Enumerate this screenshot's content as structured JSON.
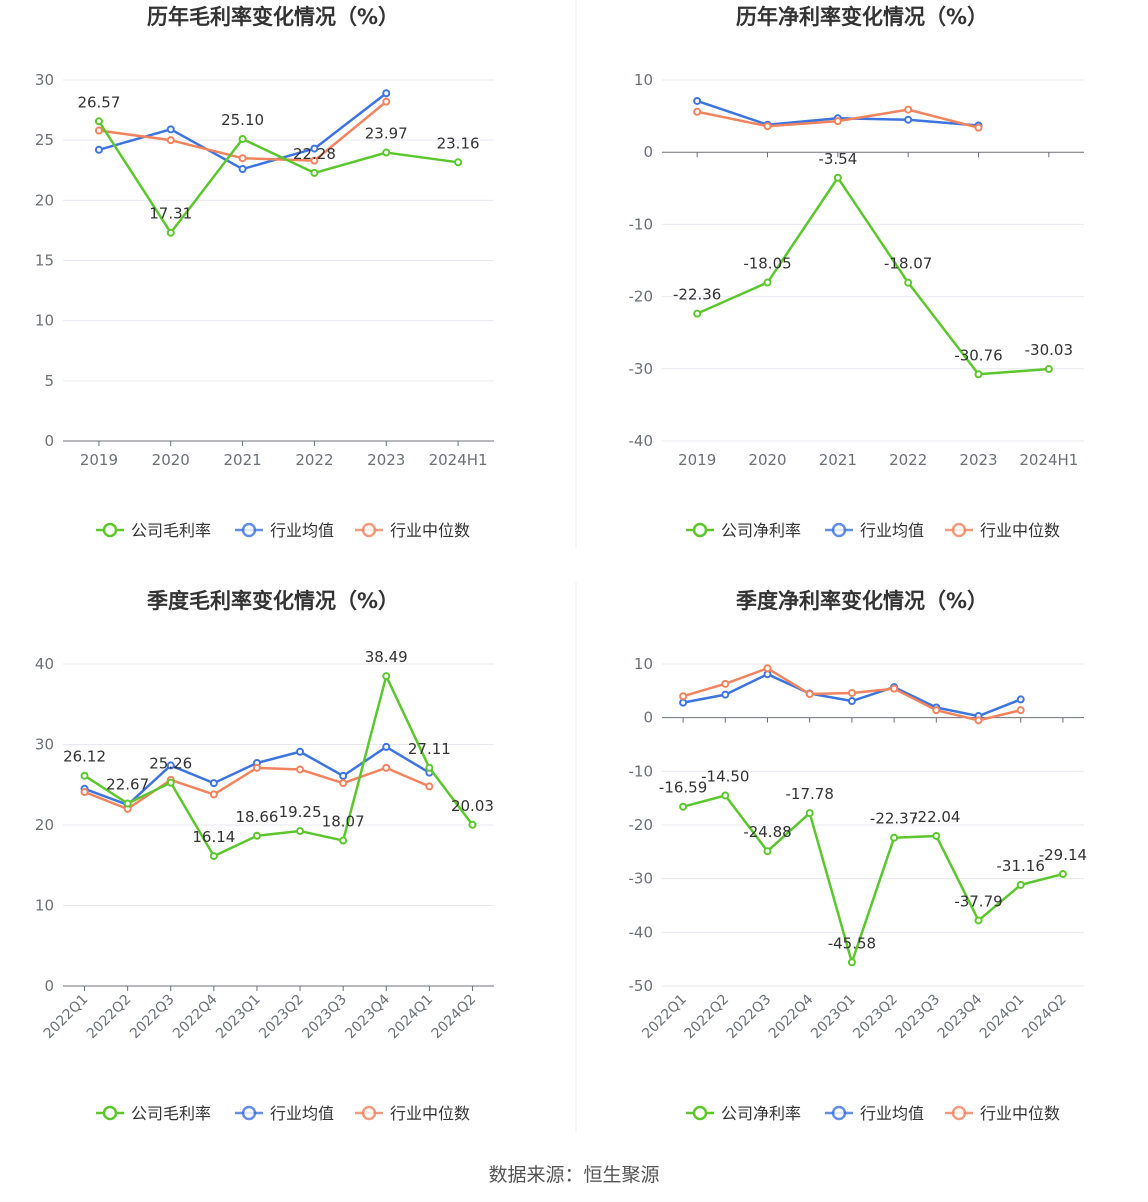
{
  "colors": {
    "company": "#5cc72d",
    "industry_avg": "#3d74e0",
    "industry_median": "#f1835e",
    "grid": "#e6e9f0",
    "axis": "#6e7079",
    "tick_text": "#6e7079",
    "title": "#333333",
    "label": "#333333"
  },
  "source": "数据来源：恒生聚源",
  "chart_data": [
    {
      "type": "line",
      "title": "历年毛利率变化情况（%）",
      "categories": [
        "2019",
        "2020",
        "2021",
        "2022",
        "2023",
        "2024H1"
      ],
      "ylim": [
        0,
        30
      ],
      "yticks": [
        0,
        5,
        10,
        15,
        20,
        25,
        30
      ],
      "grid": true,
      "legend_position": "bottom",
      "series": [
        {
          "name": "公司毛利率",
          "key": "company",
          "values": [
            26.57,
            17.31,
            25.1,
            22.28,
            23.97,
            23.16
          ],
          "labels": [
            "26.57",
            "17.31",
            "25.10",
            "22.28",
            "23.97",
            "23.16"
          ]
        },
        {
          "name": "行业均值",
          "key": "industry_avg",
          "values": [
            24.2,
            25.9,
            22.6,
            24.3,
            28.9,
            null
          ]
        },
        {
          "name": "行业中位数",
          "key": "industry_median",
          "values": [
            25.8,
            25.0,
            23.5,
            23.3,
            28.2,
            null
          ]
        }
      ]
    },
    {
      "type": "line",
      "title": "历年净利率变化情况（%）",
      "categories": [
        "2019",
        "2020",
        "2021",
        "2022",
        "2023",
        "2024H1"
      ],
      "ylim": [
        -40,
        10
      ],
      "yticks": [
        -40,
        -30,
        -20,
        -10,
        0,
        10
      ],
      "grid": true,
      "legend_position": "bottom",
      "series": [
        {
          "name": "公司净利率",
          "key": "company",
          "values": [
            -22.36,
            -18.05,
            -3.54,
            -18.07,
            -30.76,
            -30.03
          ],
          "labels": [
            "-22.36",
            "-18.05",
            "-3.54",
            "-18.07",
            "-30.76",
            "-30.03"
          ]
        },
        {
          "name": "行业均值",
          "key": "industry_avg",
          "values": [
            7.1,
            3.8,
            4.7,
            4.5,
            3.7,
            null
          ]
        },
        {
          "name": "行业中位数",
          "key": "industry_median",
          "values": [
            5.6,
            3.6,
            4.3,
            5.9,
            3.4,
            null
          ]
        }
      ]
    },
    {
      "type": "line",
      "title": "季度毛利率变化情况（%）",
      "categories": [
        "2022Q1",
        "2022Q2",
        "2022Q3",
        "2022Q4",
        "2023Q1",
        "2023Q2",
        "2023Q3",
        "2023Q4",
        "2024Q1",
        "2024Q2"
      ],
      "ylim": [
        0,
        40
      ],
      "yticks": [
        0,
        10,
        20,
        30,
        40
      ],
      "grid": true,
      "legend_position": "bottom",
      "series": [
        {
          "name": "公司毛利率",
          "key": "company",
          "values": [
            26.12,
            22.67,
            25.26,
            16.14,
            18.66,
            19.25,
            18.07,
            38.49,
            27.11,
            20.03
          ],
          "labels": [
            "26.12",
            "22.67",
            "25.26",
            "16.14",
            "18.66",
            "19.25",
            "18.07",
            "38.49",
            "27.11",
            "20.03"
          ]
        },
        {
          "name": "行业均值",
          "key": "industry_avg",
          "values": [
            24.5,
            22.5,
            27.4,
            25.2,
            27.7,
            29.1,
            26.1,
            29.7,
            26.5,
            null
          ]
        },
        {
          "name": "行业中位数",
          "key": "industry_median",
          "values": [
            24.1,
            22.0,
            25.6,
            23.8,
            27.1,
            26.9,
            25.2,
            27.1,
            24.8,
            null
          ]
        }
      ]
    },
    {
      "type": "line",
      "title": "季度净利率变化情况（%）",
      "categories": [
        "2022Q1",
        "2022Q2",
        "2022Q3",
        "2022Q4",
        "2023Q1",
        "2023Q2",
        "2023Q3",
        "2023Q4",
        "2024Q1",
        "2024Q2"
      ],
      "ylim": [
        -50,
        10
      ],
      "yticks": [
        -50,
        -40,
        -30,
        -20,
        -10,
        0,
        10
      ],
      "grid": true,
      "legend_position": "bottom",
      "series": [
        {
          "name": "公司净利率",
          "key": "company",
          "values": [
            -16.59,
            -14.5,
            -24.88,
            -17.78,
            -45.58,
            -22.37,
            -22.04,
            -37.79,
            -31.16,
            -29.14
          ],
          "labels": [
            "-16.59",
            "-14.50",
            "-24.88",
            "-17.78",
            "-45.58",
            "-22.37",
            "-22.04",
            "-37.79",
            "-31.16",
            "-29.14"
          ]
        },
        {
          "name": "行业均值",
          "key": "industry_avg",
          "values": [
            2.8,
            4.3,
            8.1,
            4.5,
            3.1,
            5.7,
            1.9,
            0.3,
            3.4,
            null
          ]
        },
        {
          "name": "行业中位数",
          "key": "industry_median",
          "values": [
            4.0,
            6.3,
            9.2,
            4.4,
            4.6,
            5.4,
            1.4,
            -0.5,
            1.4,
            null
          ]
        }
      ]
    }
  ]
}
